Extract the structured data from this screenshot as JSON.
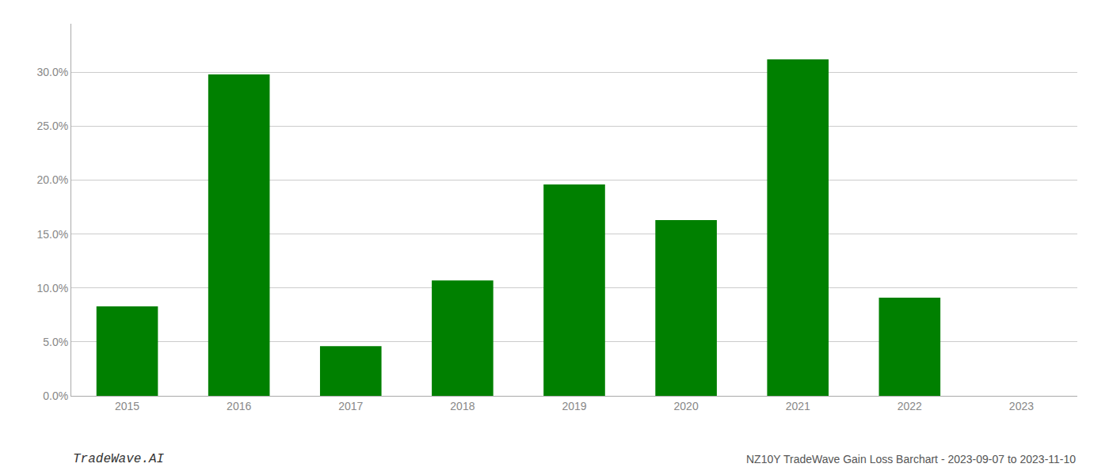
{
  "chart_data": {
    "type": "bar",
    "title": "NZ10Y TradeWave Gain Loss Barchart - 2023-09-07 to 2023-11-10",
    "annotations": [
      "TradeWave.AI"
    ],
    "categories": [
      "2015",
      "2016",
      "2017",
      "2018",
      "2019",
      "2020",
      "2021",
      "2022",
      "2023"
    ],
    "values": [
      0.083,
      0.298,
      0.046,
      0.107,
      0.196,
      0.163,
      0.312,
      0.091,
      0.0
    ],
    "color": "#008000",
    "ylim": [
      0,
      0.345
    ],
    "yticks": [
      {
        "value": 0.0,
        "label": "0.0%"
      },
      {
        "value": 0.05,
        "label": "5.0%"
      },
      {
        "value": 0.1,
        "label": "10.0%"
      },
      {
        "value": 0.15,
        "label": "15.0%"
      },
      {
        "value": 0.2,
        "label": "20.0%"
      },
      {
        "value": 0.25,
        "label": "25.0%"
      },
      {
        "value": 0.3,
        "label": "30.0%"
      }
    ],
    "grid": true
  }
}
